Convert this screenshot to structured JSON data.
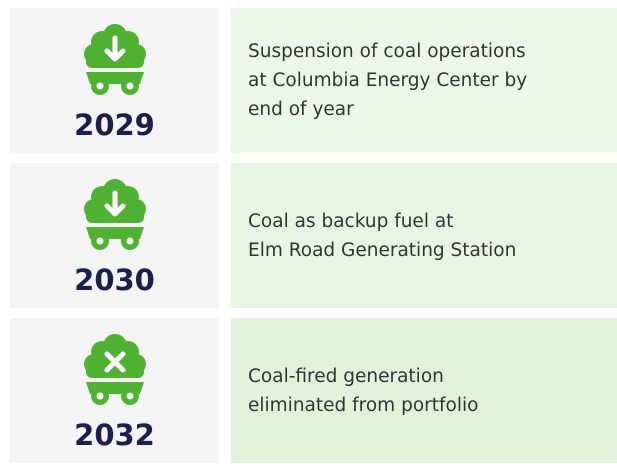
{
  "rows": [
    {
      "year": "2029",
      "icon": "arrow",
      "lines": [
        "Suspension of coal operations",
        "at Columbia Energy Center by",
        "end of year"
      ]
    },
    {
      "year": "2030",
      "icon": "arrow",
      "lines": [
        "Coal as backup fuel at",
        "Elm Road Generating Station"
      ]
    },
    {
      "year": "2032",
      "icon": "cross",
      "lines": [
        "Coal-fired generation",
        "eliminated from portfolio"
      ]
    }
  ]
}
